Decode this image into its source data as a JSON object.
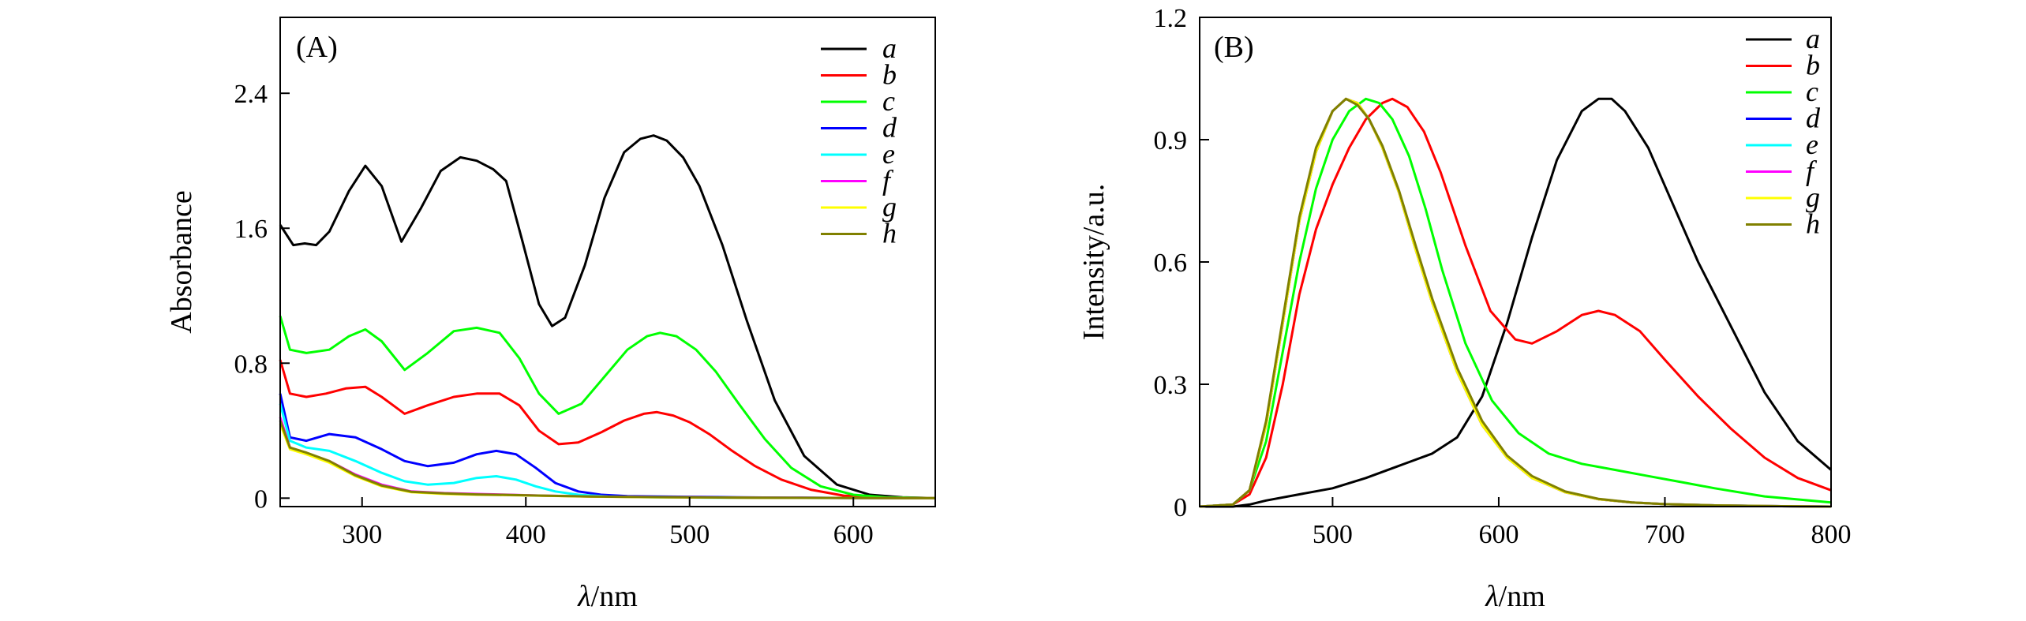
{
  "chart_data": [
    {
      "type": "line",
      "panel_label": "(A)",
      "title": "",
      "xlabel_symbol": "λ",
      "xlabel_unit": "/nm",
      "ylabel": "Absorbance",
      "xlim": [
        250,
        650
      ],
      "ylim": [
        -0.05,
        2.85
      ],
      "xticks": [
        300,
        400,
        500,
        600
      ],
      "yticks": [
        0,
        0.8,
        1.6,
        2.4
      ],
      "ytick_labels": [
        "0",
        "0.8",
        "1.6",
        "2.4"
      ],
      "legend_position": "top-right",
      "series": [
        {
          "name": "a",
          "color": "#000000",
          "x": [
            250,
            258,
            265,
            272,
            280,
            292,
            302,
            312,
            324,
            336,
            348,
            360,
            370,
            380,
            388,
            398,
            408,
            416,
            424,
            436,
            448,
            460,
            470,
            478,
            486,
            496,
            506,
            520,
            535,
            552,
            570,
            590,
            610,
            630,
            650
          ],
          "y": [
            1.62,
            1.5,
            1.51,
            1.5,
            1.58,
            1.82,
            1.97,
            1.85,
            1.52,
            1.72,
            1.94,
            2.02,
            2.0,
            1.95,
            1.88,
            1.52,
            1.15,
            1.02,
            1.07,
            1.38,
            1.78,
            2.05,
            2.13,
            2.15,
            2.12,
            2.02,
            1.85,
            1.5,
            1.05,
            0.58,
            0.25,
            0.08,
            0.02,
            0.005,
            0.0
          ]
        },
        {
          "name": "b",
          "color": "#ff0000",
          "x": [
            250,
            256,
            266,
            278,
            290,
            302,
            312,
            326,
            340,
            356,
            370,
            384,
            396,
            408,
            420,
            432,
            446,
            460,
            472,
            480,
            490,
            500,
            512,
            526,
            540,
            556,
            574,
            594,
            614,
            634,
            650
          ],
          "y": [
            0.82,
            0.62,
            0.6,
            0.62,
            0.65,
            0.66,
            0.6,
            0.5,
            0.55,
            0.6,
            0.62,
            0.62,
            0.55,
            0.4,
            0.32,
            0.33,
            0.39,
            0.46,
            0.5,
            0.51,
            0.49,
            0.45,
            0.38,
            0.28,
            0.19,
            0.11,
            0.05,
            0.015,
            0.005,
            0.0,
            0.0
          ]
        },
        {
          "name": "c",
          "color": "#00ff00",
          "x": [
            250,
            256,
            266,
            280,
            292,
            302,
            312,
            326,
            340,
            356,
            370,
            384,
            396,
            408,
            420,
            434,
            448,
            462,
            474,
            482,
            492,
            504,
            516,
            530,
            546,
            562,
            580,
            600,
            620,
            650
          ],
          "y": [
            1.08,
            0.88,
            0.86,
            0.88,
            0.96,
            1.0,
            0.93,
            0.76,
            0.86,
            0.99,
            1.01,
            0.98,
            0.83,
            0.62,
            0.5,
            0.56,
            0.72,
            0.88,
            0.96,
            0.98,
            0.96,
            0.88,
            0.75,
            0.56,
            0.35,
            0.18,
            0.07,
            0.02,
            0.005,
            0.0
          ]
        },
        {
          "name": "d",
          "color": "#0000ff",
          "x": [
            250,
            256,
            266,
            280,
            296,
            312,
            326,
            340,
            356,
            370,
            382,
            394,
            406,
            418,
            432,
            446,
            462,
            480,
            500,
            530,
            560,
            600,
            650
          ],
          "y": [
            0.62,
            0.36,
            0.34,
            0.38,
            0.36,
            0.29,
            0.22,
            0.19,
            0.21,
            0.26,
            0.28,
            0.26,
            0.18,
            0.09,
            0.04,
            0.02,
            0.012,
            0.01,
            0.008,
            0.005,
            0.003,
            0.001,
            0.0
          ]
        },
        {
          "name": "e",
          "color": "#00ffff",
          "x": [
            250,
            256,
            266,
            280,
            296,
            312,
            326,
            340,
            356,
            370,
            382,
            394,
            406,
            418,
            432,
            450,
            470,
            500,
            540,
            600,
            650
          ],
          "y": [
            0.56,
            0.34,
            0.3,
            0.28,
            0.22,
            0.15,
            0.1,
            0.08,
            0.09,
            0.12,
            0.13,
            0.11,
            0.07,
            0.04,
            0.02,
            0.01,
            0.006,
            0.004,
            0.002,
            0.001,
            0.0
          ]
        },
        {
          "name": "f",
          "color": "#ff00ff",
          "x": [
            250,
            256,
            266,
            280,
            296,
            312,
            330,
            350,
            370,
            390,
            410,
            440,
            480,
            540,
            600,
            650
          ],
          "y": [
            0.48,
            0.3,
            0.26,
            0.22,
            0.14,
            0.08,
            0.04,
            0.03,
            0.025,
            0.02,
            0.015,
            0.01,
            0.006,
            0.003,
            0.001,
            0.0
          ]
        },
        {
          "name": "g",
          "color": "#ffff00",
          "x": [
            250,
            256,
            266,
            280,
            296,
            312,
            330,
            350,
            370,
            390,
            410,
            440,
            480,
            540,
            600,
            650
          ],
          "y": [
            0.44,
            0.29,
            0.26,
            0.21,
            0.13,
            0.07,
            0.035,
            0.025,
            0.02,
            0.018,
            0.014,
            0.009,
            0.005,
            0.002,
            0.001,
            0.0
          ]
        },
        {
          "name": "h",
          "color": "#808000",
          "x": [
            250,
            256,
            266,
            280,
            296,
            312,
            330,
            350,
            370,
            390,
            410,
            440,
            480,
            540,
            600,
            650
          ],
          "y": [
            0.46,
            0.3,
            0.27,
            0.22,
            0.135,
            0.075,
            0.038,
            0.028,
            0.022,
            0.019,
            0.015,
            0.01,
            0.006,
            0.003,
            0.001,
            0.0
          ]
        }
      ]
    },
    {
      "type": "line",
      "panel_label": "(B)",
      "title": "",
      "xlabel_symbol": "λ",
      "xlabel_unit": "/nm",
      "ylabel": "Intensity/a.u.",
      "xlim": [
        420,
        800
      ],
      "ylim": [
        0,
        1.2
      ],
      "xticks": [
        500,
        600,
        700,
        800
      ],
      "yticks": [
        0,
        0.3,
        0.6,
        0.9,
        1.2
      ],
      "ytick_labels": [
        "0",
        "0.3",
        "0.6",
        "0.9",
        "1.2"
      ],
      "legend_position": "top-right",
      "series": [
        {
          "name": "a",
          "color": "#000000",
          "x": [
            420,
            440,
            450,
            460,
            480,
            500,
            520,
            540,
            560,
            575,
            590,
            605,
            620,
            635,
            650,
            660,
            668,
            676,
            690,
            705,
            720,
            740,
            760,
            780,
            800
          ],
          "y": [
            0.0,
            0.0,
            0.005,
            0.015,
            0.03,
            0.045,
            0.07,
            0.1,
            0.13,
            0.17,
            0.27,
            0.45,
            0.66,
            0.85,
            0.97,
            1.0,
            1.0,
            0.97,
            0.88,
            0.74,
            0.6,
            0.44,
            0.28,
            0.16,
            0.09
          ]
        },
        {
          "name": "b",
          "color": "#ff0000",
          "x": [
            420,
            440,
            450,
            460,
            470,
            480,
            490,
            500,
            510,
            520,
            530,
            536,
            545,
            555,
            565,
            580,
            595,
            610,
            620,
            635,
            650,
            660,
            670,
            685,
            700,
            720,
            740,
            760,
            780,
            800
          ],
          "y": [
            0.0,
            0.005,
            0.03,
            0.12,
            0.3,
            0.52,
            0.68,
            0.79,
            0.88,
            0.95,
            0.99,
            1.0,
            0.98,
            0.92,
            0.82,
            0.64,
            0.48,
            0.41,
            0.4,
            0.43,
            0.47,
            0.48,
            0.47,
            0.43,
            0.36,
            0.27,
            0.19,
            0.12,
            0.07,
            0.04
          ]
        },
        {
          "name": "c",
          "color": "#00ff00",
          "x": [
            420,
            440,
            450,
            460,
            470,
            480,
            490,
            500,
            510,
            520,
            528,
            536,
            546,
            556,
            566,
            580,
            596,
            612,
            630,
            650,
            670,
            690,
            710,
            730,
            760,
            800
          ],
          "y": [
            0.0,
            0.005,
            0.04,
            0.16,
            0.38,
            0.6,
            0.78,
            0.9,
            0.97,
            1.0,
            0.99,
            0.95,
            0.86,
            0.73,
            0.58,
            0.4,
            0.26,
            0.18,
            0.13,
            0.105,
            0.09,
            0.075,
            0.06,
            0.045,
            0.025,
            0.01
          ]
        },
        {
          "name": "d",
          "color": "#0000ff",
          "x": [
            420,
            440,
            450,
            460,
            470,
            480,
            490,
            500,
            508,
            515,
            522,
            530,
            540,
            550,
            560,
            575,
            590,
            605,
            620,
            640,
            660,
            680,
            700,
            730,
            770,
            800
          ],
          "y": [
            0.0,
            0.005,
            0.04,
            0.2,
            0.45,
            0.7,
            0.87,
            0.97,
            1.0,
            0.99,
            0.95,
            0.88,
            0.77,
            0.63,
            0.5,
            0.33,
            0.2,
            0.12,
            0.07,
            0.035,
            0.018,
            0.01,
            0.006,
            0.003,
            0.001,
            0.0
          ]
        },
        {
          "name": "e",
          "color": "#00ffff",
          "x": [
            420,
            440,
            450,
            460,
            470,
            480,
            490,
            500,
            508,
            515,
            522,
            530,
            540,
            550,
            560,
            575,
            590,
            605,
            620,
            640,
            660,
            680,
            700,
            730,
            770,
            800
          ],
          "y": [
            0.0,
            0.005,
            0.04,
            0.2,
            0.45,
            0.7,
            0.87,
            0.97,
            1.0,
            0.99,
            0.95,
            0.88,
            0.77,
            0.63,
            0.5,
            0.33,
            0.2,
            0.12,
            0.07,
            0.035,
            0.018,
            0.01,
            0.006,
            0.003,
            0.001,
            0.0
          ]
        },
        {
          "name": "f",
          "color": "#ff00ff",
          "x": [
            420,
            440,
            450,
            460,
            470,
            480,
            490,
            500,
            508,
            515,
            522,
            530,
            540,
            550,
            560,
            575,
            590,
            605,
            620,
            640,
            660,
            680,
            700,
            730,
            770,
            800
          ],
          "y": [
            0.0,
            0.005,
            0.04,
            0.2,
            0.45,
            0.7,
            0.87,
            0.97,
            1.0,
            0.99,
            0.95,
            0.88,
            0.77,
            0.63,
            0.5,
            0.33,
            0.2,
            0.12,
            0.07,
            0.035,
            0.018,
            0.01,
            0.006,
            0.003,
            0.001,
            0.0
          ]
        },
        {
          "name": "g",
          "color": "#ffff00",
          "x": [
            420,
            440,
            450,
            460,
            470,
            480,
            490,
            500,
            508,
            515,
            522,
            530,
            540,
            550,
            560,
            575,
            590,
            605,
            620,
            640,
            660,
            680,
            700,
            730,
            770,
            800
          ],
          "y": [
            0.0,
            0.005,
            0.04,
            0.2,
            0.45,
            0.7,
            0.87,
            0.97,
            1.0,
            0.99,
            0.95,
            0.88,
            0.77,
            0.63,
            0.5,
            0.33,
            0.2,
            0.12,
            0.07,
            0.035,
            0.018,
            0.01,
            0.006,
            0.003,
            0.001,
            0.0
          ]
        },
        {
          "name": "h",
          "color": "#808000",
          "x": [
            420,
            440,
            450,
            460,
            470,
            480,
            490,
            500,
            508,
            515,
            522,
            530,
            540,
            550,
            560,
            575,
            590,
            605,
            620,
            640,
            660,
            680,
            700,
            730,
            770,
            800
          ],
          "y": [
            0.0,
            0.005,
            0.04,
            0.21,
            0.46,
            0.71,
            0.88,
            0.97,
            1.0,
            0.985,
            0.95,
            0.885,
            0.775,
            0.64,
            0.51,
            0.34,
            0.21,
            0.125,
            0.075,
            0.037,
            0.019,
            0.01,
            0.006,
            0.003,
            0.001,
            0.0
          ]
        }
      ]
    }
  ]
}
